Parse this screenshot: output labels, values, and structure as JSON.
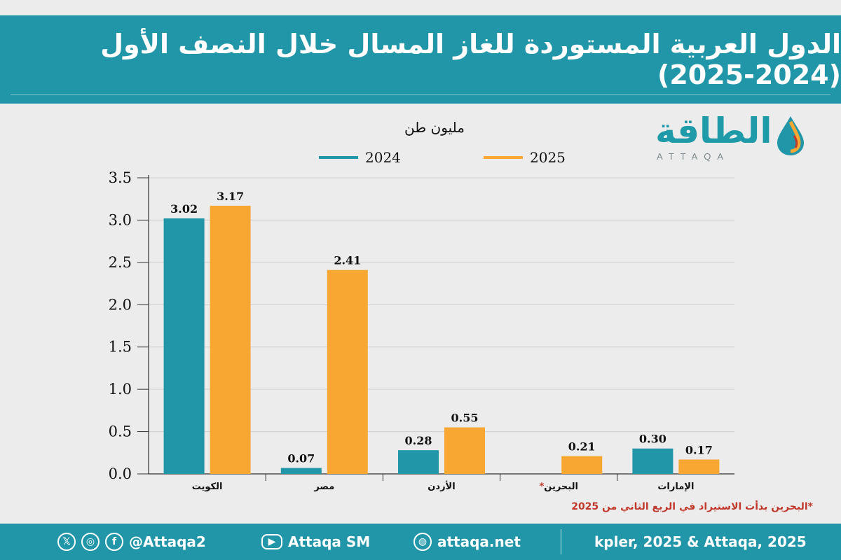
{
  "title": "الدول العربية المستوردة للغاز المسال خلال النصف الأول (2024-2025)",
  "logo": {
    "arabic": "الطاقة",
    "latin": "ATTAQA"
  },
  "colors": {
    "header": "#2196a8",
    "series_2024": "#2196a8",
    "series_2025": "#f8a832",
    "note": "#c0392b"
  },
  "note": "*البحرين بدأت الاستيراد في الربع الثاني من 2025",
  "footer": {
    "social_handle": "@Attaqa2",
    "youtube": "Attaqa SM",
    "website": "attaqa.net",
    "source": "kpler, 2025 & Attaqa, 2025",
    "icons": [
      "x-icon",
      "instagram-icon",
      "facebook-icon",
      "youtube-icon",
      "globe-icon"
    ]
  },
  "chart_data": {
    "type": "bar",
    "unit_label": "مليون طن",
    "categories": [
      "الكويت",
      "مصر",
      "الأردن",
      "البحرين*",
      "الإمارات"
    ],
    "series": [
      {
        "name": "2024",
        "values": [
          3.02,
          0.07,
          0.28,
          null,
          0.3
        ],
        "labels": [
          "3.02",
          "0.07",
          "0.28",
          "",
          "0.30"
        ]
      },
      {
        "name": "2025",
        "values": [
          3.17,
          2.41,
          0.55,
          0.21,
          0.17
        ],
        "labels": [
          "3.17",
          "2.41",
          "0.55",
          "0.21",
          "0.17"
        ]
      }
    ],
    "yticks": [
      "0.0",
      "0.5",
      "1.0",
      "1.5",
      "2.0",
      "2.5",
      "3.0",
      "3.5"
    ],
    "ylim": [
      0,
      3.5
    ],
    "grid": true,
    "legend": "top-center"
  }
}
